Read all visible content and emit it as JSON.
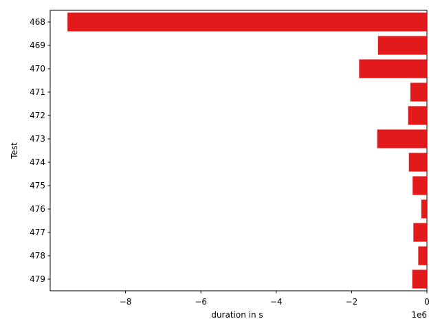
{
  "chart_data": {
    "type": "bar",
    "orientation": "horizontal",
    "categories": [
      "468",
      "469",
      "470",
      "471",
      "472",
      "473",
      "474",
      "475",
      "476",
      "477",
      "478",
      "479"
    ],
    "values": [
      -9540000,
      -1300000,
      -1800000,
      -440000,
      -500000,
      -1320000,
      -480000,
      -380000,
      -150000,
      -360000,
      -230000,
      -390000
    ],
    "xlabel": "duration in s",
    "ylabel": "Test",
    "offset_label": "1e6",
    "xlim": [
      -10000000,
      0
    ],
    "xticks": [
      -8000000,
      -6000000,
      -4000000,
      -2000000,
      0
    ],
    "xtick_labels": [
      "−8",
      "−6",
      "−4",
      "−2",
      "0"
    ],
    "bar_color": "#e31a1c",
    "grid": false
  }
}
